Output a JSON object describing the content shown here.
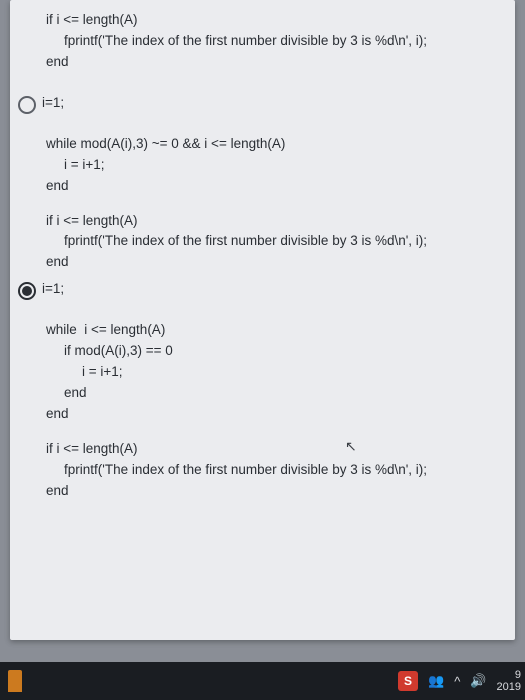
{
  "snippet_top": {
    "l1": "if i <= length(A)",
    "l2": "fprintf('The index of the first number divisible by 3 is %d\\n', i);",
    "l3": "end"
  },
  "option1": {
    "header": "i=1;",
    "l1": "while mod(A(i),3) ~= 0 && i <= length(A)",
    "l2": "i = i+1;",
    "l3": "end",
    "l4": "if i <= length(A)",
    "l5": "fprintf('The index of the first number divisible by 3 is %d\\n', i);",
    "l6": "end",
    "selected": false
  },
  "option2": {
    "header": "i=1;",
    "l1": "while  i <= length(A)",
    "l2": "if mod(A(i),3) == 0",
    "l3": "i = i+1;",
    "l4": "end",
    "l5": "end",
    "l6": "if i <= length(A)",
    "l7": "fprintf('The index of the first number divisible by 3 is %d\\n', i);",
    "l8": "end",
    "selected": true
  },
  "taskbar": {
    "s_label": "S",
    "people": "👥",
    "caret": "^",
    "sound": "🔊",
    "time_top": "9",
    "time_bottom": "2019"
  }
}
